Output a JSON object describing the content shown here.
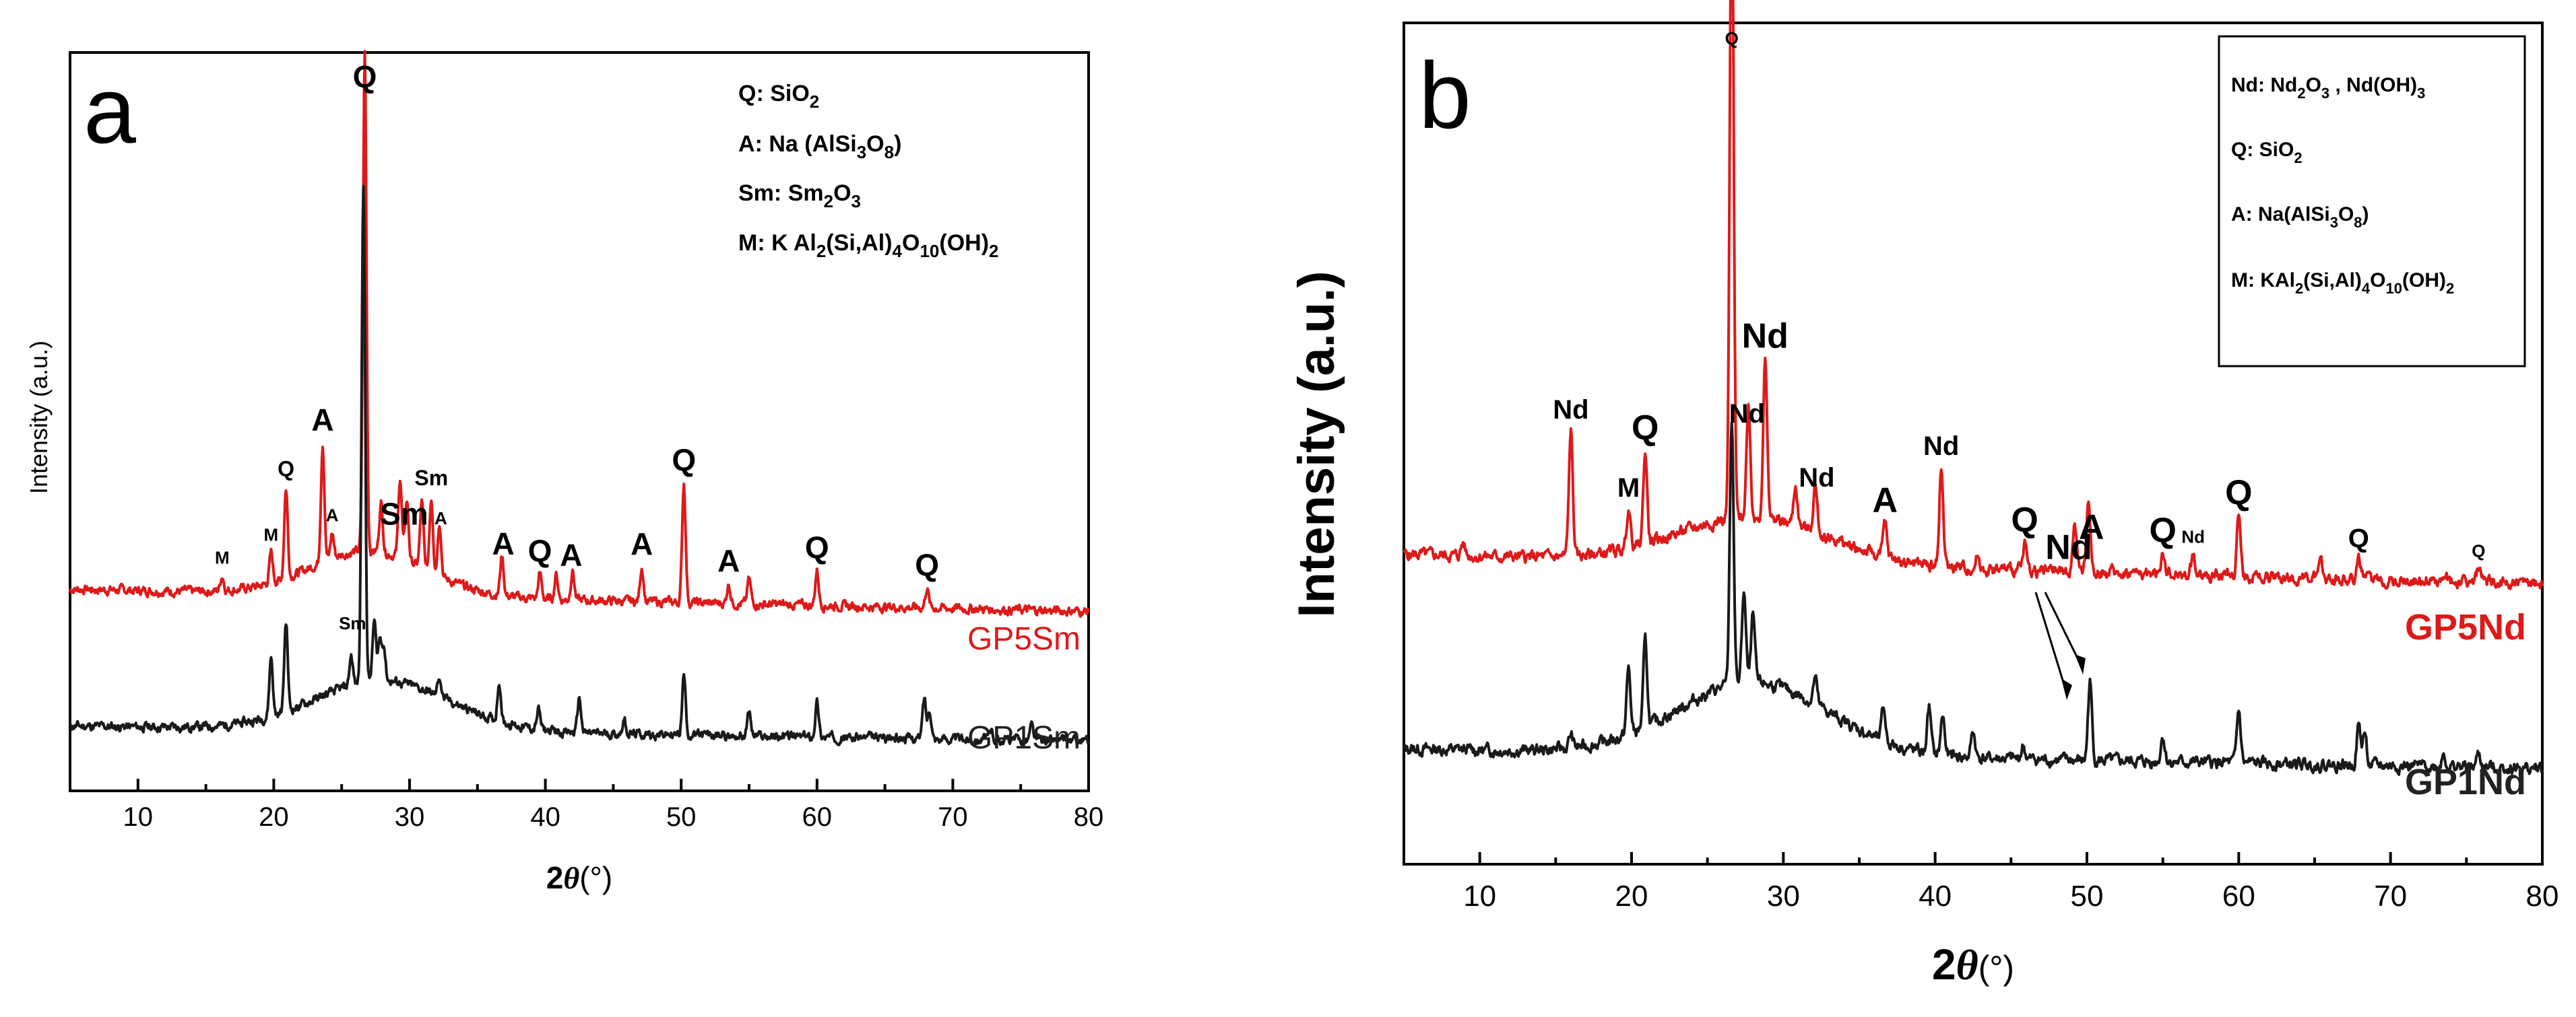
{
  "chart_data": [
    {
      "panel": "a",
      "type": "line",
      "xlabel": "2θ(°)",
      "ylabel": "Intensity (a.u.)",
      "xlim": [
        5,
        80
      ],
      "xticks": [
        10,
        20,
        30,
        40,
        50,
        60,
        70,
        80
      ],
      "legend": [
        {
          "key": "Q",
          "formula": "SiO2"
        },
        {
          "key": "A",
          "formula": "Na (AlSi3O8)"
        },
        {
          "key": "Sm",
          "formula": "Sm2O3"
        },
        {
          "key": "M",
          "formula": "K Al2(Si,Al)4O10(OH)2"
        }
      ],
      "series": [
        {
          "name": "GP5Sm",
          "color": "#dd1a1a",
          "baseline": 34,
          "noise_seed": 7,
          "hump": {
            "center": 27,
            "width": 6,
            "height": 9
          },
          "peaks": [
            [
              16.2,
              3
            ],
            [
              19.8,
              6
            ],
            [
              20.9,
              18
            ],
            [
              23.6,
              24
            ],
            [
              24.3,
              5
            ],
            [
              26.7,
              100
            ],
            [
              27.9,
              10
            ],
            [
              29.3,
              16
            ],
            [
              29.8,
              12
            ],
            [
              30.9,
              13
            ],
            [
              31.6,
              15
            ],
            [
              32.2,
              11
            ],
            [
              36.8,
              8
            ],
            [
              39.6,
              5
            ],
            [
              40.8,
              5
            ],
            [
              42.0,
              6
            ],
            [
              47.1,
              7
            ],
            [
              50.2,
              24
            ],
            [
              53.5,
              4
            ],
            [
              55.0,
              5
            ],
            [
              60.0,
              7
            ],
            [
              68.1,
              4
            ]
          ]
        },
        {
          "name": "GP1Sm",
          "color": "#1a1a1a",
          "baseline": 8,
          "noise_seed": 11,
          "hump": {
            "center": 28,
            "width": 7,
            "height": 10
          },
          "peaks": [
            [
              19.8,
              12
            ],
            [
              20.9,
              18
            ],
            [
              25.7,
              6
            ],
            [
              26.6,
              100
            ],
            [
              27.4,
              12
            ],
            [
              27.8,
              8
            ],
            [
              28.1,
              7
            ],
            [
              32.2,
              4
            ],
            [
              36.6,
              8
            ],
            [
              39.5,
              4
            ],
            [
              42.5,
              7
            ],
            [
              45.8,
              3
            ],
            [
              50.2,
              12
            ],
            [
              55.0,
              5
            ],
            [
              60.0,
              7
            ],
            [
              67.9,
              8
            ],
            [
              68.3,
              6
            ],
            [
              72.8,
              2
            ],
            [
              75.8,
              3
            ]
          ]
        }
      ],
      "peak_labels": [
        {
          "text": "Q",
          "x": 26.7,
          "size": "large"
        },
        {
          "text": "A",
          "x": 23.6,
          "size": "large"
        },
        {
          "text": "Q",
          "x": 20.9,
          "size": "small"
        },
        {
          "text": "A",
          "x": 24.3,
          "size": "tiny"
        },
        {
          "text": "M",
          "x": 16.2,
          "size": "tiny"
        },
        {
          "text": "M",
          "x": 19.8,
          "size": "tiny"
        },
        {
          "text": "Sm",
          "x": 29.6,
          "size": "large"
        },
        {
          "text": "Sm",
          "x": 31.6,
          "size": "small"
        },
        {
          "text": "A",
          "x": 32.3,
          "size": "tiny"
        },
        {
          "text": "Sm",
          "x": 25.8,
          "size": "tiny"
        },
        {
          "text": "A",
          "x": 36.9,
          "size": "large"
        },
        {
          "text": "Q",
          "x": 39.6,
          "size": "large"
        },
        {
          "text": "A",
          "x": 41.9,
          "size": "large"
        },
        {
          "text": "A",
          "x": 47.1,
          "size": "large"
        },
        {
          "text": "Q",
          "x": 50.2,
          "size": "large"
        },
        {
          "text": "A",
          "x": 53.5,
          "size": "large"
        },
        {
          "text": "Q",
          "x": 60.0,
          "size": "large"
        },
        {
          "text": "Q",
          "x": 68.1,
          "size": "large"
        }
      ]
    },
    {
      "panel": "b",
      "type": "line",
      "xlabel": "2θ(°)",
      "ylabel": "Intensity (a.u.)",
      "xlim": [
        5,
        80
      ],
      "xticks": [
        10,
        20,
        30,
        40,
        50,
        60,
        70,
        80
      ],
      "legend": [
        {
          "key": "Nd",
          "formula": "Nd2O3 , Nd(OH)3"
        },
        {
          "key": "Q",
          "formula": "SiO2"
        },
        {
          "key": "A",
          "formula": "Na(AlSi3O8)"
        },
        {
          "key": "M",
          "formula": "KAl2(Si,Al)4O10(OH)2"
        }
      ],
      "series": [
        {
          "name": "GP5Nd",
          "color": "#dd1a1a",
          "baseline": 37,
          "noise_seed": 5,
          "hump": {
            "center": 28,
            "width": 7,
            "height": 7
          },
          "peaks": [
            [
              8.9,
              2
            ],
            [
              16.0,
              19
            ],
            [
              19.8,
              6
            ],
            [
              20.9,
              14
            ],
            [
              26.6,
              100
            ],
            [
              27.7,
              17
            ],
            [
              28.8,
              24
            ],
            [
              30.8,
              6
            ],
            [
              32.1,
              7
            ],
            [
              36.7,
              5
            ],
            [
              40.4,
              15
            ],
            [
              42.8,
              2
            ],
            [
              45.9,
              4
            ],
            [
              49.2,
              7
            ],
            [
              50.1,
              11
            ],
            [
              55.0,
              3
            ],
            [
              57.0,
              3
            ],
            [
              60.0,
              9
            ],
            [
              65.4,
              2
            ],
            [
              67.9,
              3
            ],
            [
              75.8,
              2
            ]
          ]
        },
        {
          "name": "GP1Nd",
          "color": "#1a1a1a",
          "baseline": 9,
          "noise_seed": 13,
          "hump": {
            "center": 28,
            "width": 7,
            "height": 11
          },
          "peaks": [
            [
              16.0,
              2
            ],
            [
              19.8,
              10
            ],
            [
              20.9,
              13
            ],
            [
              26.6,
              40
            ],
            [
              27.4,
              14
            ],
            [
              28.0,
              10
            ],
            [
              32.1,
              4
            ],
            [
              36.6,
              5
            ],
            [
              39.6,
              7
            ],
            [
              40.5,
              6
            ],
            [
              42.5,
              4
            ],
            [
              45.8,
              2
            ],
            [
              50.2,
              12
            ],
            [
              55.0,
              4
            ],
            [
              60.0,
              8
            ],
            [
              67.9,
              6
            ],
            [
              68.3,
              5
            ],
            [
              73.5,
              2
            ],
            [
              75.8,
              2
            ]
          ]
        }
      ],
      "peak_labels": [
        {
          "text": "Q",
          "x": 26.6,
          "size": "tiny"
        },
        {
          "text": "Nd",
          "x": 16.0,
          "size": "small"
        },
        {
          "text": "Q",
          "x": 20.9,
          "size": "large"
        },
        {
          "text": "M",
          "x": 19.8,
          "size": "small"
        },
        {
          "text": "Nd",
          "x": 28.8,
          "size": "large"
        },
        {
          "text": "Nd",
          "x": 27.6,
          "size": "small"
        },
        {
          "text": "Nd",
          "x": 32.2,
          "size": "small"
        },
        {
          "text": "A",
          "x": 36.7,
          "size": "large"
        },
        {
          "text": "Nd",
          "x": 40.4,
          "size": "small"
        },
        {
          "text": "Nd",
          "x": 48.8,
          "size": "large"
        },
        {
          "text": "A",
          "x": 50.3,
          "size": "large"
        },
        {
          "text": "Q",
          "x": 45.9,
          "size": "large"
        },
        {
          "text": "Q",
          "x": 55.0,
          "size": "large"
        },
        {
          "text": "Nd",
          "x": 57.0,
          "size": "tiny"
        },
        {
          "text": "Q",
          "x": 60.0,
          "size": "large"
        },
        {
          "text": "Q",
          "x": 67.9,
          "size": "small"
        },
        {
          "text": "Q",
          "x": 75.8,
          "size": "tiny"
        }
      ]
    }
  ]
}
